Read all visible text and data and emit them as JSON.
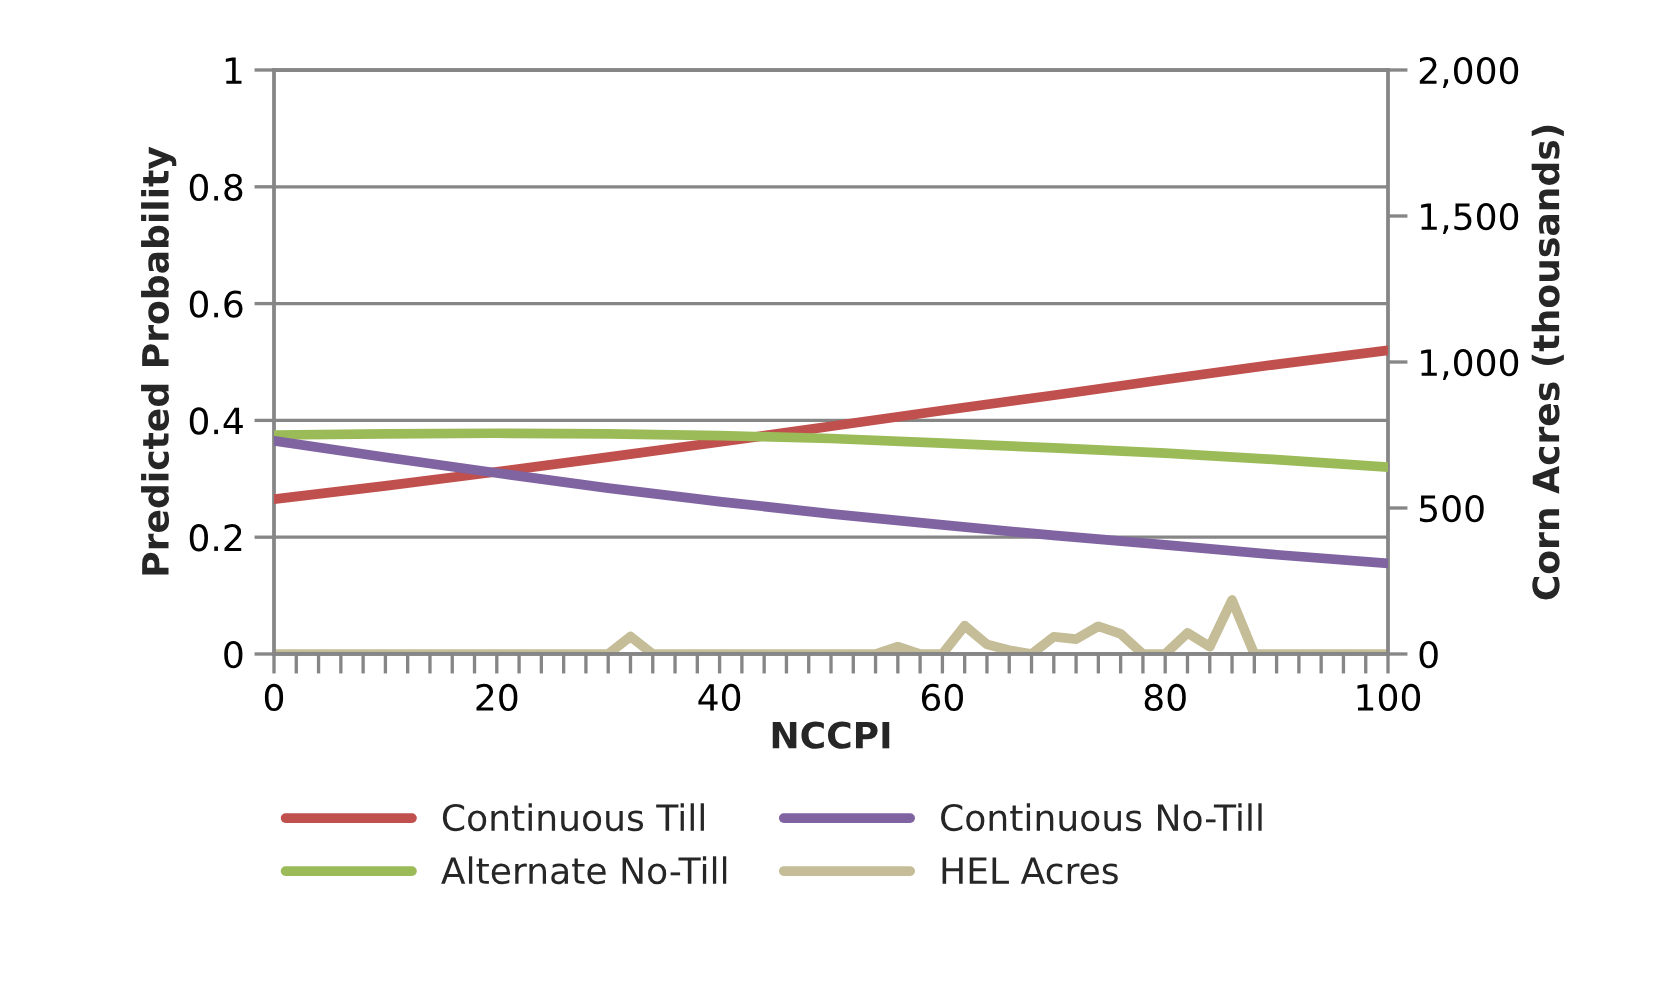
{
  "chart_data": {
    "type": "line",
    "xlabel": "NCCPI",
    "ylabel": "Predicted Probability",
    "y2label": "Corn Acres (thousands)",
    "xlim": [
      0,
      100
    ],
    "ylim": [
      0,
      1
    ],
    "y2lim": [
      0,
      2000
    ],
    "xticks": [
      0,
      {
        "value": 2,
        "label": null
      },
      {
        "value": 4,
        "label": null
      },
      {
        "value": 6,
        "label": null
      },
      {
        "value": 8,
        "label": null
      },
      {
        "value": 10,
        "label": null
      },
      {
        "value": 12,
        "label": null
      },
      {
        "value": 14,
        "label": null
      },
      {
        "value": 16,
        "label": null
      },
      {
        "value": 18,
        "label": null
      },
      20,
      {
        "value": 22,
        "label": null
      },
      {
        "value": 24,
        "label": null
      },
      {
        "value": 26,
        "label": null
      },
      {
        "value": 28,
        "label": null
      },
      {
        "value": 30,
        "label": null
      },
      {
        "value": 32,
        "label": null
      },
      {
        "value": 34,
        "label": null
      },
      {
        "value": 36,
        "label": null
      },
      {
        "value": 38,
        "label": null
      },
      40,
      {
        "value": 42,
        "label": null
      },
      {
        "value": 44,
        "label": null
      },
      {
        "value": 46,
        "label": null
      },
      {
        "value": 48,
        "label": null
      },
      {
        "value": 50,
        "label": null
      },
      {
        "value": 52,
        "label": null
      },
      {
        "value": 54,
        "label": null
      },
      {
        "value": 56,
        "label": null
      },
      {
        "value": 58,
        "label": null
      },
      60,
      {
        "value": 62,
        "label": null
      },
      {
        "value": 64,
        "label": null
      },
      {
        "value": 66,
        "label": null
      },
      {
        "value": 68,
        "label": null
      },
      {
        "value": 70,
        "label": null
      },
      {
        "value": 72,
        "label": null
      },
      {
        "value": 74,
        "label": null
      },
      {
        "value": 76,
        "label": null
      },
      {
        "value": 78,
        "label": null
      },
      80,
      {
        "value": 82,
        "label": null
      },
      {
        "value": 84,
        "label": null
      },
      {
        "value": 86,
        "label": null
      },
      {
        "value": 88,
        "label": null
      },
      {
        "value": 90,
        "label": null
      },
      {
        "value": 92,
        "label": null
      },
      {
        "value": 94,
        "label": null
      },
      {
        "value": 96,
        "label": null
      },
      {
        "value": 98,
        "label": null
      },
      100
    ],
    "yticks": [
      0,
      0.2,
      0.4,
      0.6,
      0.8,
      1
    ],
    "y2ticks": [
      0,
      500,
      {
        "value": 1000,
        "label": "1,000"
      },
      {
        "value": 1500,
        "label": "1,500"
      },
      {
        "value": 2000,
        "label": "2,000"
      }
    ],
    "grid": "y",
    "legend": "bottom",
    "marker": "none",
    "line_style": "solid",
    "series": [
      {
        "name": "Continuous Till",
        "color": "#c0504d",
        "x": [
          0,
          10,
          20,
          30,
          40,
          50,
          60,
          70,
          80,
          90,
          100
        ],
        "values": [
          0.265,
          0.288,
          0.312,
          0.337,
          0.363,
          0.39,
          0.417,
          0.443,
          0.47,
          0.496,
          0.52
        ]
      },
      {
        "name": "Alternate No-Till",
        "color": "#9bbb59",
        "x": [
          0,
          10,
          20,
          30,
          40,
          50,
          60,
          70,
          80,
          90,
          100
        ],
        "values": [
          0.375,
          0.377,
          0.378,
          0.377,
          0.374,
          0.369,
          0.361,
          0.353,
          0.344,
          0.333,
          0.32
        ]
      },
      {
        "name": "Continuous No-Till",
        "color": "#8064a2",
        "x": [
          0,
          10,
          20,
          30,
          40,
          50,
          60,
          70,
          80,
          90,
          100
        ],
        "values": [
          0.365,
          0.337,
          0.31,
          0.284,
          0.261,
          0.24,
          0.221,
          0.203,
          0.187,
          0.17,
          0.155
        ]
      },
      {
        "name": "HEL Acres",
        "color": "#c4bd97",
        "axis": "y2",
        "x": [
          0,
          2,
          4,
          6,
          8,
          10,
          12,
          14,
          16,
          18,
          20,
          22,
          24,
          26,
          28,
          30,
          32,
          34,
          36,
          38,
          40,
          42,
          44,
          46,
          48,
          50,
          52,
          54,
          56,
          58,
          60,
          62,
          64,
          66,
          68,
          70,
          72,
          74,
          76,
          78,
          80,
          82,
          84,
          86,
          88,
          90,
          92,
          94,
          96,
          98,
          100
        ],
        "values": [
          0,
          0,
          0,
          0,
          0,
          0,
          0,
          0,
          0,
          0,
          0,
          0,
          0,
          0,
          0,
          0,
          60,
          0,
          0,
          0,
          0,
          0,
          0,
          0,
          0,
          0,
          0,
          0,
          25,
          0,
          0,
          97,
          33,
          13,
          0,
          59,
          51,
          95,
          69,
          0,
          0,
          72,
          25,
          185,
          0,
          0,
          0,
          0,
          0,
          0,
          0
        ]
      }
    ]
  }
}
